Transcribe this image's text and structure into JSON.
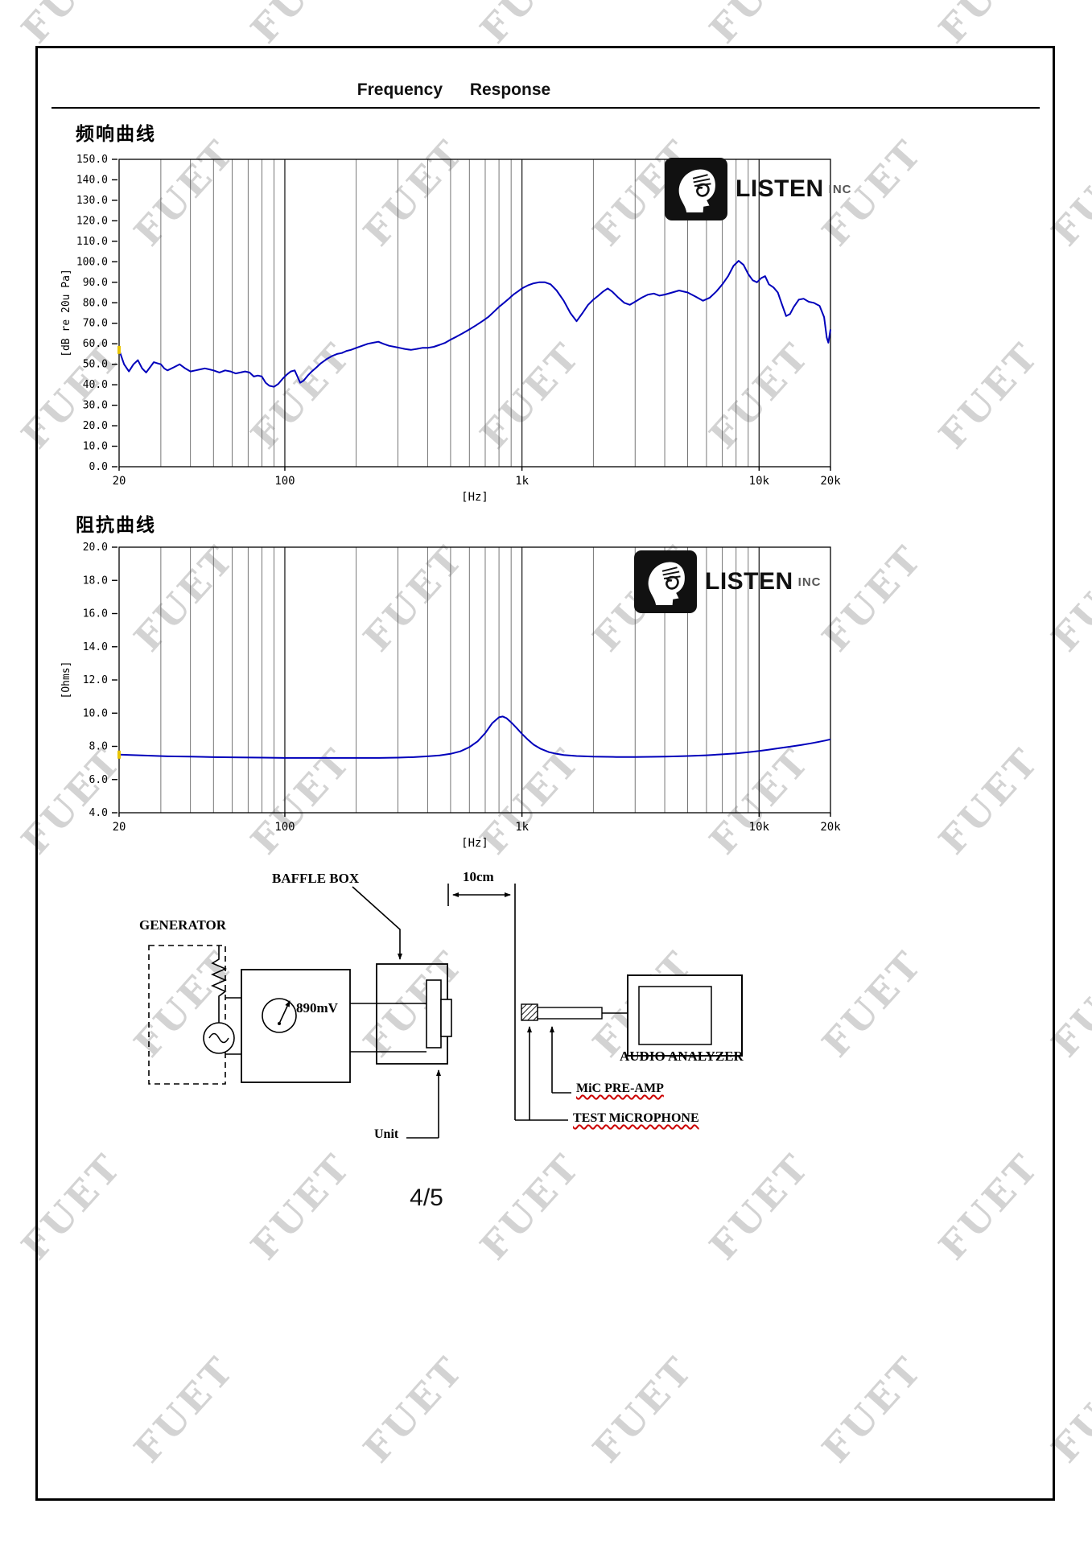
{
  "page": {
    "title": "Frequency Response",
    "page_number": "4/5",
    "watermark_text": "FUET"
  },
  "logo": {
    "brand": "LISTEN",
    "suffix": "INC"
  },
  "colors": {
    "curve": "#0000bb",
    "start_marker": "#e8c400",
    "accent_underline": "#cc0000"
  },
  "chart_data": [
    {
      "type": "line",
      "title": "频响曲线",
      "xlabel": "[Hz]",
      "ylabel": "[dB re 20u Pa]",
      "x_scale": "log",
      "xlim": [
        20,
        20000
      ],
      "ylim": [
        0,
        150
      ],
      "ytick_step": 10,
      "grid": "vertical-log",
      "xticks": [
        {
          "v": 20,
          "label": "20"
        },
        {
          "v": 100,
          "label": "100"
        },
        {
          "v": 1000,
          "label": "1k"
        },
        {
          "v": 10000,
          "label": "10k"
        },
        {
          "v": 20000,
          "label": "20k"
        }
      ],
      "line_color": "#0000bb",
      "points": [
        [
          20,
          57
        ],
        [
          21,
          50
        ],
        [
          22,
          46.5
        ],
        [
          23,
          50
        ],
        [
          24,
          52
        ],
        [
          25,
          48
        ],
        [
          26,
          46
        ],
        [
          27,
          48.5
        ],
        [
          28,
          51
        ],
        [
          29,
          50.5
        ],
        [
          30,
          50
        ],
        [
          31,
          48
        ],
        [
          32,
          47
        ],
        [
          34,
          48.5
        ],
        [
          36,
          50
        ],
        [
          38,
          48
        ],
        [
          40,
          46.5
        ],
        [
          42,
          47
        ],
        [
          44,
          47.5
        ],
        [
          46,
          48
        ],
        [
          48,
          47.5
        ],
        [
          50,
          47
        ],
        [
          53,
          46
        ],
        [
          56,
          47
        ],
        [
          59,
          46.5
        ],
        [
          62,
          45.5
        ],
        [
          65,
          46
        ],
        [
          68,
          46.5
        ],
        [
          71,
          46
        ],
        [
          74,
          44
        ],
        [
          77,
          44.5
        ],
        [
          80,
          44
        ],
        [
          83,
          41
        ],
        [
          86,
          39.5
        ],
        [
          90,
          39
        ],
        [
          94,
          40.5
        ],
        [
          98,
          43
        ],
        [
          102,
          45
        ],
        [
          106,
          46.5
        ],
        [
          110,
          47
        ],
        [
          113,
          44
        ],
        [
          116,
          41
        ],
        [
          120,
          42
        ],
        [
          125,
          44.5
        ],
        [
          130,
          46.5
        ],
        [
          136,
          48.5
        ],
        [
          142,
          50.5
        ],
        [
          150,
          52.5
        ],
        [
          158,
          54
        ],
        [
          166,
          55
        ],
        [
          174,
          55.5
        ],
        [
          182,
          56.5
        ],
        [
          190,
          57
        ],
        [
          200,
          58
        ],
        [
          212,
          59
        ],
        [
          224,
          60
        ],
        [
          236,
          60.5
        ],
        [
          248,
          61
        ],
        [
          260,
          60
        ],
        [
          275,
          59
        ],
        [
          290,
          58.5
        ],
        [
          305,
          58
        ],
        [
          320,
          57.5
        ],
        [
          340,
          57
        ],
        [
          360,
          57.5
        ],
        [
          380,
          58
        ],
        [
          400,
          58
        ],
        [
          425,
          58.5
        ],
        [
          450,
          59.5
        ],
        [
          475,
          60.5
        ],
        [
          500,
          62
        ],
        [
          530,
          63.5
        ],
        [
          560,
          65
        ],
        [
          600,
          67
        ],
        [
          640,
          69
        ],
        [
          680,
          71
        ],
        [
          720,
          73
        ],
        [
          760,
          75.5
        ],
        [
          800,
          78
        ],
        [
          840,
          80
        ],
        [
          880,
          82
        ],
        [
          920,
          84
        ],
        [
          960,
          85.5
        ],
        [
          1000,
          87
        ],
        [
          1060,
          88.5
        ],
        [
          1120,
          89.5
        ],
        [
          1180,
          90
        ],
        [
          1250,
          90
        ],
        [
          1320,
          89
        ],
        [
          1400,
          86
        ],
        [
          1500,
          81
        ],
        [
          1600,
          75
        ],
        [
          1700,
          71
        ],
        [
          1800,
          75
        ],
        [
          1900,
          79
        ],
        [
          2000,
          81.5
        ],
        [
          2100,
          83.5
        ],
        [
          2200,
          85.5
        ],
        [
          2300,
          87
        ],
        [
          2400,
          85.5
        ],
        [
          2550,
          82.5
        ],
        [
          2700,
          80
        ],
        [
          2850,
          79
        ],
        [
          3000,
          80.5
        ],
        [
          3200,
          82.5
        ],
        [
          3400,
          84
        ],
        [
          3600,
          84.5
        ],
        [
          3800,
          83.5
        ],
        [
          4000,
          84
        ],
        [
          4300,
          85
        ],
        [
          4600,
          86
        ],
        [
          5000,
          85
        ],
        [
          5400,
          83
        ],
        [
          5800,
          81
        ],
        [
          6200,
          82.5
        ],
        [
          6600,
          85.5
        ],
        [
          7000,
          89
        ],
        [
          7400,
          93
        ],
        [
          7800,
          98
        ],
        [
          8200,
          100.5
        ],
        [
          8600,
          98.5
        ],
        [
          9000,
          94
        ],
        [
          9400,
          91
        ],
        [
          9800,
          90
        ],
        [
          10200,
          92
        ],
        [
          10600,
          93
        ],
        [
          11000,
          89
        ],
        [
          11500,
          87.5
        ],
        [
          12000,
          85
        ],
        [
          12500,
          79
        ],
        [
          13000,
          73.5
        ],
        [
          13500,
          74.5
        ],
        [
          14000,
          78
        ],
        [
          14700,
          81.5
        ],
        [
          15400,
          82
        ],
        [
          16200,
          80.5
        ],
        [
          17000,
          80
        ],
        [
          18000,
          78.5
        ],
        [
          18800,
          73
        ],
        [
          19300,
          63
        ],
        [
          19600,
          60.5
        ],
        [
          20000,
          67
        ]
      ]
    },
    {
      "type": "line",
      "title": "阻抗曲线",
      "xlabel": "[Hz]",
      "ylabel": "[Ohms]",
      "x_scale": "log",
      "xlim": [
        20,
        20000
      ],
      "ylim": [
        4,
        20
      ],
      "ytick_step": 2,
      "grid": "vertical-log",
      "xticks": [
        {
          "v": 20,
          "label": "20"
        },
        {
          "v": 100,
          "label": "100"
        },
        {
          "v": 1000,
          "label": "1k"
        },
        {
          "v": 10000,
          "label": "10k"
        },
        {
          "v": 20000,
          "label": "20k"
        }
      ],
      "line_color": "#0000bb",
      "points": [
        [
          20,
          7.5
        ],
        [
          25,
          7.45
        ],
        [
          32,
          7.4
        ],
        [
          40,
          7.38
        ],
        [
          50,
          7.35
        ],
        [
          65,
          7.33
        ],
        [
          80,
          7.32
        ],
        [
          100,
          7.3
        ],
        [
          130,
          7.3
        ],
        [
          160,
          7.3
        ],
        [
          200,
          7.3
        ],
        [
          250,
          7.3
        ],
        [
          300,
          7.32
        ],
        [
          350,
          7.35
        ],
        [
          400,
          7.4
        ],
        [
          450,
          7.45
        ],
        [
          500,
          7.55
        ],
        [
          550,
          7.7
        ],
        [
          600,
          7.95
        ],
        [
          650,
          8.3
        ],
        [
          700,
          8.8
        ],
        [
          750,
          9.4
        ],
        [
          800,
          9.75
        ],
        [
          830,
          9.8
        ],
        [
          860,
          9.7
        ],
        [
          900,
          9.45
        ],
        [
          950,
          9.1
        ],
        [
          1000,
          8.75
        ],
        [
          1060,
          8.4
        ],
        [
          1120,
          8.1
        ],
        [
          1200,
          7.85
        ],
        [
          1300,
          7.65
        ],
        [
          1400,
          7.55
        ],
        [
          1500,
          7.48
        ],
        [
          1700,
          7.42
        ],
        [
          2000,
          7.38
        ],
        [
          2500,
          7.36
        ],
        [
          3000,
          7.36
        ],
        [
          3500,
          7.37
        ],
        [
          4000,
          7.38
        ],
        [
          4500,
          7.4
        ],
        [
          5000,
          7.42
        ],
        [
          6000,
          7.46
        ],
        [
          7000,
          7.52
        ],
        [
          8000,
          7.58
        ],
        [
          9000,
          7.65
        ],
        [
          10000,
          7.72
        ],
        [
          11000,
          7.8
        ],
        [
          12000,
          7.88
        ],
        [
          13500,
          7.98
        ],
        [
          15000,
          8.08
        ],
        [
          16500,
          8.18
        ],
        [
          18000,
          8.28
        ],
        [
          19000,
          8.35
        ],
        [
          20000,
          8.42
        ]
      ]
    }
  ],
  "diagram": {
    "labels": {
      "generator": "GENERATOR",
      "baffle_box": "BAFFLE BOX",
      "distance": "10cm",
      "voltage": "890mV",
      "unit": "Unit",
      "audio_analyzer": "AUDIO ANALYZER",
      "mic_preamp": "MiC PRE-AMP",
      "test_microphone": "TEST MiCROPHONE"
    }
  }
}
